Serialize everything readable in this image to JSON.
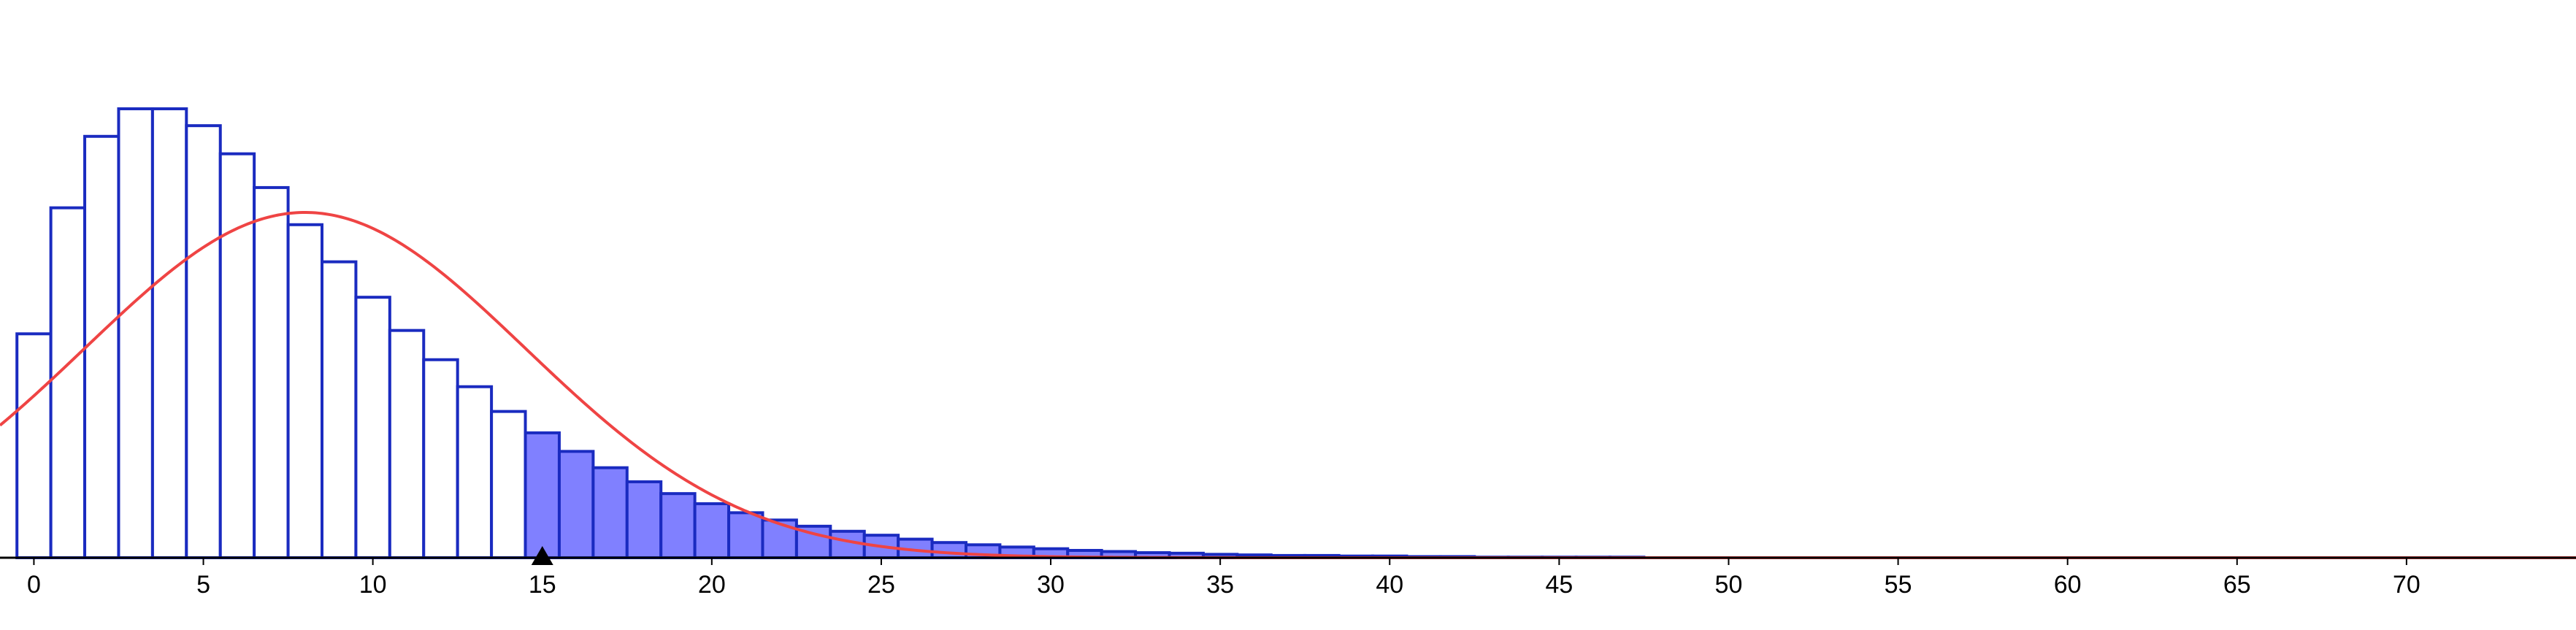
{
  "chart_data": {
    "type": "bar",
    "title": "",
    "xlabel": "",
    "ylabel": "",
    "xlim": [
      -1,
      75
    ],
    "ylim": [
      0,
      0.0872
    ],
    "x_ticks": [
      "0",
      "5",
      "10",
      "15",
      "20",
      "25",
      "30",
      "35",
      "40",
      "45",
      "50",
      "55",
      "60",
      "65",
      "70"
    ],
    "grid": false,
    "legend": "none",
    "marker_x": 15,
    "shaded_from": 15,
    "categories": [
      0,
      1,
      2,
      3,
      4,
      5,
      6,
      7,
      8,
      9,
      10,
      11,
      12,
      13,
      14,
      15,
      16,
      17,
      18,
      19,
      20,
      21,
      22,
      23,
      24,
      25,
      26,
      27,
      28,
      29,
      30,
      31,
      32,
      33,
      34,
      35,
      36,
      37,
      38,
      39,
      40,
      41,
      42,
      43,
      44,
      45,
      46,
      47,
      48,
      49,
      50
    ],
    "values": [
      0.0398,
      0.0622,
      0.0749,
      0.0798,
      0.0798,
      0.0768,
      0.0718,
      0.0658,
      0.0592,
      0.0526,
      0.0463,
      0.0404,
      0.0352,
      0.0304,
      0.026,
      0.0222,
      0.0189,
      0.016,
      0.0135,
      0.0114,
      0.0096,
      0.008,
      0.0067,
      0.0056,
      0.0047,
      0.004,
      0.0033,
      0.0027,
      0.0023,
      0.0019,
      0.0016,
      0.0013,
      0.0011,
      0.0009,
      0.0008,
      0.0006,
      0.0005,
      0.0004,
      0.0004,
      0.0003,
      0.0003,
      0.0002,
      0.0002,
      0.0001,
      0.0001,
      0.0001,
      0.0001,
      0.0001,
      0.0,
      0.0,
      0.0
    ],
    "curve": {
      "type": "normal",
      "mean": 8,
      "sd": 6.5
    },
    "colors": {
      "bar_stroke": "#1a2bc0",
      "bar_fill": "#ffffff",
      "shaded_fill": "#8080ff",
      "curve": "#ef4444",
      "axis": "#000000",
      "tick_text": "#000000"
    }
  }
}
